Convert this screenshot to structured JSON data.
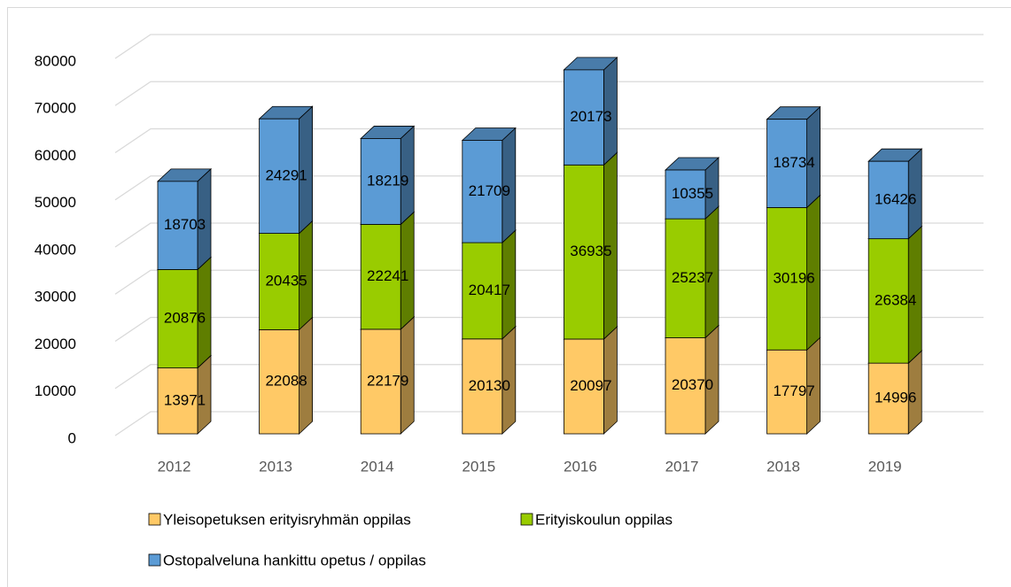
{
  "chart_data": {
    "type": "bar3d_stacked",
    "categories": [
      "2012",
      "2013",
      "2014",
      "2015",
      "2016",
      "2017",
      "2018",
      "2019"
    ],
    "series": [
      {
        "name": "Yleisopetuksen erityisryhmän oppilas",
        "color": "#ffc966",
        "values": [
          13971,
          22088,
          22179,
          20130,
          20097,
          20370,
          17797,
          14996
        ]
      },
      {
        "name": "Erityiskoulun oppilas",
        "color": "#99cc00",
        "values": [
          20876,
          20435,
          22241,
          20417,
          36935,
          25237,
          30196,
          26384
        ]
      },
      {
        "name": "Ostopalveluna hankittu opetus / oppilas",
        "color": "#5b9bd5",
        "values": [
          18703,
          24291,
          18219,
          21709,
          20173,
          10355,
          18734,
          16426
        ]
      }
    ],
    "ylim": [
      0,
      80000
    ],
    "yticks": [
      0,
      10000,
      20000,
      30000,
      40000,
      50000,
      60000,
      70000,
      80000
    ],
    "grid": true,
    "legend": "bottom"
  }
}
